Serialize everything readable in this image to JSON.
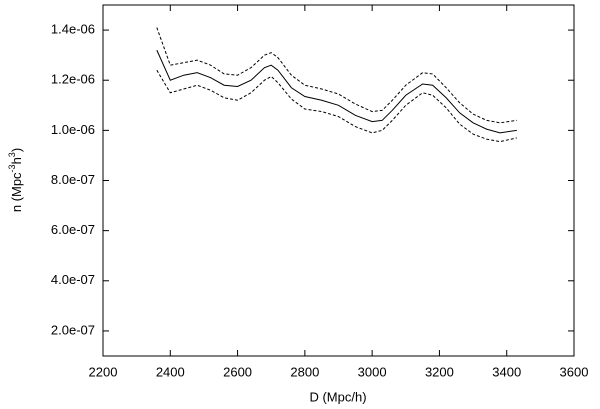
{
  "chart_data": {
    "type": "line",
    "x_label": "D (Mpc/h)",
    "y_label": {
      "parts": [
        "n (Mpc",
        "-3",
        "h",
        "3",
        ")"
      ]
    },
    "x": [
      2360,
      2400,
      2440,
      2480,
      2520,
      2560,
      2600,
      2640,
      2680,
      2700,
      2720,
      2760,
      2800,
      2850,
      2900,
      2950,
      3000,
      3030,
      3060,
      3100,
      3150,
      3180,
      3220,
      3260,
      3300,
      3340,
      3380,
      3430
    ],
    "series": [
      {
        "color": "#000000",
        "style": "solid",
        "values": [
          1.32e-06,
          1.2e-06,
          1.22e-06,
          1.23e-06,
          1.21e-06,
          1.18e-06,
          1.175e-06,
          1.2e-06,
          1.25e-06,
          1.26e-06,
          1.24e-06,
          1.17e-06,
          1.135e-06,
          1.12e-06,
          1.1e-06,
          1.06e-06,
          1.035e-06,
          1.04e-06,
          1.08e-06,
          1.14e-06,
          1.185e-06,
          1.18e-06,
          1.13e-06,
          1.07e-06,
          1.03e-06,
          1.005e-06,
          9.9e-07,
          1e-06
        ]
      },
      {
        "color": "#000000",
        "style": "dashed",
        "values": [
          1.41e-06,
          1.26e-06,
          1.27e-06,
          1.28e-06,
          1.26e-06,
          1.225e-06,
          1.22e-06,
          1.25e-06,
          1.3e-06,
          1.31e-06,
          1.29e-06,
          1.22e-06,
          1.18e-06,
          1.165e-06,
          1.145e-06,
          1.105e-06,
          1.075e-06,
          1.08e-06,
          1.12e-06,
          1.18e-06,
          1.23e-06,
          1.225e-06,
          1.17e-06,
          1.11e-06,
          1.065e-06,
          1.04e-06,
          1.03e-06,
          1.04e-06
        ]
      },
      {
        "color": "#000000",
        "style": "dashed",
        "values": [
          1.24e-06,
          1.15e-06,
          1.165e-06,
          1.18e-06,
          1.16e-06,
          1.13e-06,
          1.12e-06,
          1.15e-06,
          1.2e-06,
          1.215e-06,
          1.19e-06,
          1.125e-06,
          1.085e-06,
          1.075e-06,
          1.055e-06,
          1.015e-06,
          9.9e-07,
          1e-06,
          1.04e-06,
          1.1e-06,
          1.15e-06,
          1.14e-06,
          1.09e-06,
          1.025e-06,
          9.85e-07,
          9.65e-07,
          9.55e-07,
          9.7e-07
        ]
      }
    ],
    "xlim": [
      2200,
      3600
    ],
    "xticks": [
      2200,
      2400,
      2600,
      2800,
      3000,
      3200,
      3400,
      3600
    ],
    "ylim": [
      1e-07,
      1.5e-06
    ],
    "yticks": [
      {
        "value": 2e-07,
        "label": "2.0e-07"
      },
      {
        "value": 4e-07,
        "label": "4.0e-07"
      },
      {
        "value": 6e-07,
        "label": "6.0e-07"
      },
      {
        "value": 8e-07,
        "label": "8.0e-07"
      },
      {
        "value": 1e-06,
        "label": "1.0e-06"
      },
      {
        "value": 1.2e-06,
        "label": "1.2e-06"
      },
      {
        "value": 1.4e-06,
        "label": "1.4e-06"
      }
    ],
    "grid": false
  }
}
